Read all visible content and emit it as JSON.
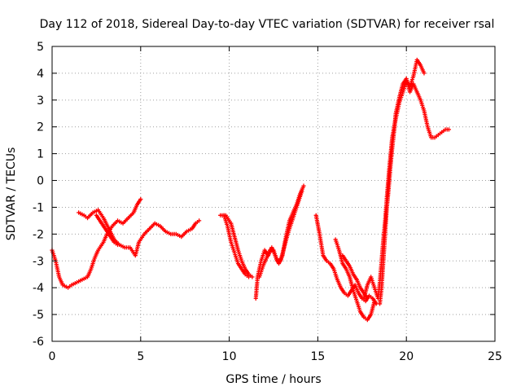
{
  "chart_data": {
    "type": "scatter",
    "title": "Day 112 of 2018, Sidereal Day-to-day VTEC variation (SDTVAR) for receiver rsal",
    "xlabel": "GPS time / hours",
    "ylabel": "SDTVAR / TECUs",
    "xlim": [
      0,
      25
    ],
    "ylim": [
      -6,
      5
    ],
    "x_ticks": [
      0,
      5,
      10,
      15,
      20,
      25
    ],
    "y_ticks": [
      -6,
      -5,
      -4,
      -3,
      -2,
      -1,
      0,
      1,
      2,
      3,
      4,
      5
    ],
    "grid": true,
    "marker": "+",
    "color": "#ff0000",
    "series": [
      {
        "segments": [
          [
            [
              0.0,
              -2.6
            ],
            [
              0.2,
              -3.0
            ],
            [
              0.4,
              -3.6
            ],
            [
              0.6,
              -3.9
            ],
            [
              0.9,
              -4.0
            ],
            [
              1.1,
              -3.9
            ],
            [
              1.4,
              -3.8
            ],
            [
              1.7,
              -3.7
            ],
            [
              2.0,
              -3.6
            ],
            [
              2.2,
              -3.3
            ],
            [
              2.4,
              -2.9
            ],
            [
              2.6,
              -2.6
            ],
            [
              2.9,
              -2.3
            ],
            [
              3.1,
              -2.0
            ],
            [
              3.4,
              -1.7
            ],
            [
              3.7,
              -1.5
            ],
            [
              4.0,
              -1.6
            ],
            [
              4.3,
              -1.4
            ],
            [
              4.6,
              -1.2
            ],
            [
              4.8,
              -0.9
            ],
            [
              5.0,
              -0.7
            ]
          ],
          [
            [
              1.5,
              -1.2
            ],
            [
              1.8,
              -1.3
            ],
            [
              2.0,
              -1.4
            ],
            [
              2.3,
              -1.2
            ],
            [
              2.6,
              -1.1
            ],
            [
              2.9,
              -1.4
            ],
            [
              3.2,
              -1.8
            ],
            [
              3.5,
              -2.2
            ],
            [
              3.8,
              -2.4
            ],
            [
              4.1,
              -2.5
            ],
            [
              4.4,
              -2.5
            ],
            [
              4.7,
              -2.8
            ],
            [
              4.9,
              -2.3
            ],
            [
              5.2,
              -2.0
            ],
            [
              5.5,
              -1.8
            ],
            [
              5.8,
              -1.6
            ],
            [
              6.1,
              -1.7
            ],
            [
              6.4,
              -1.9
            ],
            [
              6.7,
              -2.0
            ],
            [
              7.0,
              -2.0
            ],
            [
              7.3,
              -2.1
            ],
            [
              7.6,
              -1.9
            ],
            [
              7.9,
              -1.8
            ],
            [
              8.1,
              -1.6
            ],
            [
              8.3,
              -1.5
            ]
          ],
          [
            [
              2.5,
              -1.3
            ],
            [
              2.7,
              -1.5
            ],
            [
              2.9,
              -1.7
            ],
            [
              3.1,
              -1.9
            ],
            [
              3.3,
              -2.1
            ],
            [
              3.5,
              -2.3
            ],
            [
              3.7,
              -2.4
            ]
          ],
          [
            [
              9.5,
              -1.3
            ],
            [
              9.8,
              -1.3
            ],
            [
              10.1,
              -1.6
            ],
            [
              10.3,
              -2.1
            ],
            [
              10.5,
              -2.6
            ],
            [
              10.7,
              -3.0
            ],
            [
              10.9,
              -3.3
            ],
            [
              11.1,
              -3.5
            ],
            [
              11.3,
              -3.6
            ]
          ],
          [
            [
              9.7,
              -1.3
            ],
            [
              9.9,
              -1.7
            ],
            [
              10.1,
              -2.3
            ],
            [
              10.3,
              -2.7
            ],
            [
              10.5,
              -3.1
            ],
            [
              10.7,
              -3.3
            ],
            [
              10.9,
              -3.5
            ],
            [
              11.1,
              -3.6
            ]
          ],
          [
            [
              11.5,
              -4.4
            ],
            [
              11.6,
              -3.6
            ],
            [
              11.8,
              -3.0
            ],
            [
              12.0,
              -2.6
            ],
            [
              12.2,
              -2.8
            ],
            [
              12.4,
              -2.5
            ],
            [
              12.6,
              -2.8
            ],
            [
              12.8,
              -3.1
            ],
            [
              13.0,
              -2.8
            ],
            [
              13.2,
              -2.1
            ],
            [
              13.4,
              -1.5
            ],
            [
              13.6,
              -1.2
            ],
            [
              13.8,
              -0.9
            ],
            [
              14.0,
              -0.5
            ],
            [
              14.2,
              -0.2
            ]
          ],
          [
            [
              11.7,
              -3.6
            ],
            [
              11.9,
              -3.2
            ],
            [
              12.1,
              -2.9
            ],
            [
              12.3,
              -2.6
            ],
            [
              12.5,
              -2.6
            ],
            [
              12.7,
              -3.0
            ],
            [
              12.9,
              -3.0
            ],
            [
              13.1,
              -2.5
            ],
            [
              13.3,
              -2.0
            ],
            [
              13.5,
              -1.6
            ],
            [
              13.7,
              -1.2
            ],
            [
              13.9,
              -0.8
            ],
            [
              14.1,
              -0.4
            ]
          ],
          [
            [
              14.9,
              -1.3
            ],
            [
              15.1,
              -2.0
            ],
            [
              15.3,
              -2.8
            ],
            [
              15.5,
              -3.0
            ],
            [
              15.7,
              -3.1
            ],
            [
              15.9,
              -3.3
            ],
            [
              16.1,
              -3.7
            ],
            [
              16.3,
              -4.0
            ],
            [
              16.5,
              -4.2
            ],
            [
              16.7,
              -4.3
            ],
            [
              16.9,
              -4.1
            ],
            [
              17.1,
              -3.9
            ],
            [
              17.3,
              -4.2
            ],
            [
              17.5,
              -4.4
            ],
            [
              17.7,
              -4.5
            ],
            [
              17.9,
              -4.3
            ],
            [
              18.1,
              -4.4
            ],
            [
              18.3,
              -4.6
            ]
          ],
          [
            [
              16.0,
              -2.2
            ],
            [
              16.2,
              -2.6
            ],
            [
              16.4,
              -3.1
            ],
            [
              16.6,
              -3.3
            ],
            [
              16.8,
              -3.6
            ],
            [
              17.0,
              -4.1
            ],
            [
              17.2,
              -4.5
            ],
            [
              17.4,
              -4.9
            ],
            [
              17.6,
              -5.1
            ],
            [
              17.8,
              -5.2
            ],
            [
              18.0,
              -5.0
            ],
            [
              18.2,
              -4.5
            ]
          ],
          [
            [
              16.4,
              -2.8
            ],
            [
              16.6,
              -3.0
            ],
            [
              16.8,
              -3.2
            ],
            [
              17.0,
              -3.5
            ],
            [
              17.2,
              -3.7
            ],
            [
              17.4,
              -4.0
            ],
            [
              17.6,
              -4.2
            ],
            [
              17.8,
              -4.4
            ]
          ],
          [
            [
              17.6,
              -4.4
            ],
            [
              17.8,
              -3.9
            ],
            [
              18.0,
              -3.6
            ],
            [
              18.2,
              -4.0
            ],
            [
              18.4,
              -4.4
            ],
            [
              18.5,
              -3.8
            ],
            [
              18.6,
              -3.0
            ],
            [
              18.7,
              -2.2
            ],
            [
              18.8,
              -1.5
            ],
            [
              18.9,
              -0.6
            ],
            [
              19.0,
              0.2
            ],
            [
              19.1,
              0.9
            ],
            [
              19.2,
              1.6
            ],
            [
              19.4,
              2.3
            ],
            [
              19.6,
              2.9
            ],
            [
              19.8,
              3.3
            ],
            [
              20.0,
              3.7
            ],
            [
              20.2,
              3.5
            ],
            [
              20.4,
              3.9
            ],
            [
              20.6,
              4.5
            ],
            [
              20.8,
              4.3
            ],
            [
              21.0,
              4.0
            ]
          ],
          [
            [
              18.5,
              -4.6
            ],
            [
              18.6,
              -4.0
            ],
            [
              18.7,
              -3.0
            ],
            [
              18.8,
              -2.0
            ],
            [
              18.9,
              -1.0
            ],
            [
              19.0,
              -0.3
            ],
            [
              19.1,
              0.5
            ],
            [
              19.2,
              1.2
            ],
            [
              19.3,
              1.8
            ],
            [
              19.4,
              2.5
            ],
            [
              19.6,
              3.1
            ],
            [
              19.8,
              3.6
            ],
            [
              20.0,
              3.8
            ],
            [
              20.2,
              3.3
            ],
            [
              20.4,
              3.6
            ],
            [
              20.6,
              3.3
            ],
            [
              20.8,
              3.0
            ],
            [
              21.0,
              2.6
            ],
            [
              21.2,
              2.0
            ],
            [
              21.4,
              1.6
            ],
            [
              21.6,
              1.6
            ],
            [
              21.8,
              1.7
            ],
            [
              22.0,
              1.8
            ],
            [
              22.2,
              1.9
            ],
            [
              22.4,
              1.9
            ]
          ]
        ]
      }
    ]
  }
}
